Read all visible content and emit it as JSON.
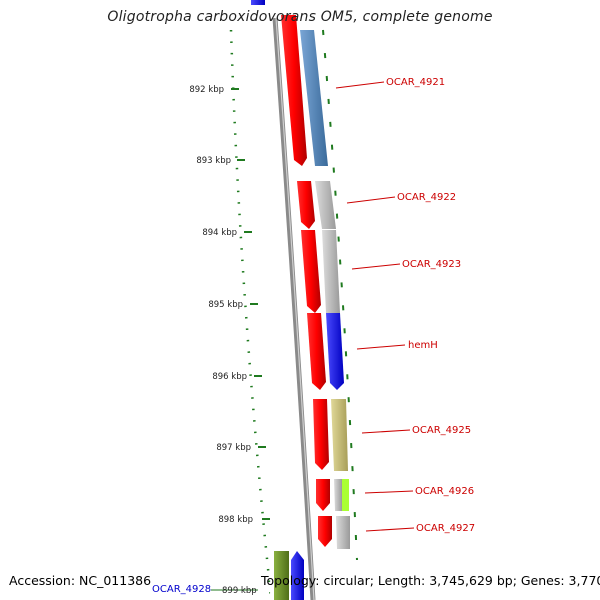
{
  "title": "Oligotropha carboxidovorans OM5, complete genome",
  "footer": {
    "accession": "Accession: NC_011386",
    "topology": "Topology: circular; Length: 3,745,629 bp; Genes: 3,770"
  },
  "ruler": [
    "892 kbp",
    "893 kbp",
    "894 kbp",
    "895 kbp",
    "896 kbp",
    "897 kbp",
    "898 kbp",
    "899 kbp"
  ],
  "gene_labels": [
    {
      "id": "OCAR_4921",
      "color": "#cc0000"
    },
    {
      "id": "OCAR_4922",
      "color": "#cc0000"
    },
    {
      "id": "OCAR_4923",
      "color": "#cc0000"
    },
    {
      "id": "hemH",
      "color": "#cc0000"
    },
    {
      "id": "OCAR_4925",
      "color": "#cc0000"
    },
    {
      "id": "OCAR_4926",
      "color": "#cc0000"
    },
    {
      "id": "OCAR_4927",
      "color": "#cc0000"
    },
    {
      "id": "OCAR_4928",
      "color": "#0000cc"
    }
  ],
  "colors": {
    "cds": "#ff0000",
    "ruler": "#1f7a1f",
    "backbone": "#888888",
    "cog_steel": "#4f81b5",
    "cog_gray": "#c0c0c0",
    "cog_blue": "#1414ff",
    "cog_khaki": "#c8c07a",
    "cog_lime": "#aaff33",
    "cog_olive": "#6b8e23"
  }
}
